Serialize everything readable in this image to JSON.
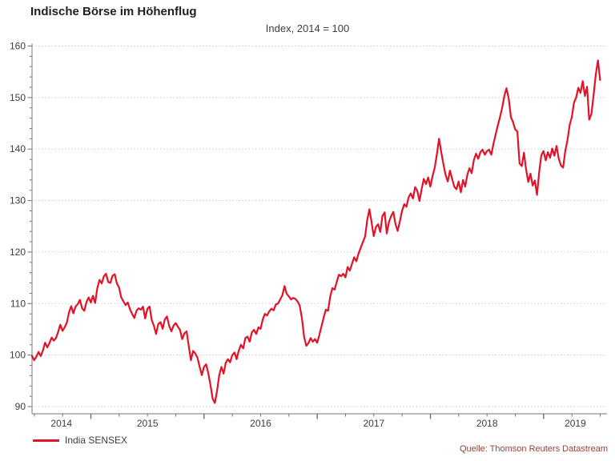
{
  "header": {
    "title": "Indische Börse im Höhenflug",
    "subtitle": "Index, 2014 = 100"
  },
  "legend": {
    "label": "India SENSEX"
  },
  "source": "Quelle: Thomson Reuters Datastream",
  "colors": {
    "line": "#e31227",
    "axis": "#8f8f8f",
    "tick": "#6e6e6e",
    "grid": "#c8c8c8",
    "text": "#3d3d3d",
    "source_text": "#9c4038"
  },
  "chart_data": {
    "type": "line",
    "title": "Indische Börse im Höhenflug",
    "subtitle": "Index, 2014 = 100",
    "grid": "horizontal-dotted",
    "legend_position": "bottom-left",
    "x_axis": {
      "min": 2014.48,
      "max": 2019.56,
      "year_labels": [
        "2014",
        "2015",
        "2016",
        "2017",
        "2018",
        "2019"
      ],
      "minor_tick_step_years": 0.25
    },
    "y_axis": {
      "min": 90,
      "max": 160,
      "ticks": [
        90,
        100,
        110,
        120,
        130,
        140,
        150,
        160
      ],
      "minor_tick_step": 2
    },
    "series": [
      {
        "name": "India SENSEX",
        "color": "#e31227",
        "t_start": 2014.48,
        "points_per_year": 52,
        "values": [
          99.8,
          99.0,
          99.7,
          100.6,
          99.8,
          100.9,
          102.4,
          101.5,
          102.3,
          103.4,
          102.8,
          103.3,
          104.5,
          105.9,
          104.7,
          105.4,
          106.3,
          108.3,
          109.5,
          108.1,
          109.4,
          109.9,
          110.7,
          109.1,
          108.6,
          110.3,
          111.2,
          110.2,
          111.5,
          110.1,
          113.0,
          114.6,
          113.9,
          115.3,
          115.8,
          114.2,
          114.0,
          115.4,
          115.7,
          113.9,
          113.1,
          111.2,
          110.4,
          109.7,
          110.2,
          108.9,
          108.0,
          107.2,
          108.6,
          109.1,
          108.8,
          109.4,
          107.1,
          109.0,
          109.4,
          106.8,
          105.7,
          104.1,
          106.0,
          106.4,
          105.1,
          106.9,
          107.5,
          105.7,
          104.6,
          105.7,
          106.2,
          105.5,
          104.9,
          103.1,
          104.2,
          104.6,
          101.8,
          99.0,
          100.8,
          100.3,
          99.5,
          97.7,
          96.1,
          97.7,
          98.2,
          96.4,
          94.1,
          91.5,
          90.7,
          93.0,
          96.1,
          97.7,
          96.4,
          98.5,
          99.2,
          98.6,
          100.0,
          100.5,
          99.2,
          100.9,
          102.0,
          101.3,
          103.3,
          103.6,
          102.6,
          104.4,
          104.9,
          104.1,
          105.4,
          105.1,
          106.9,
          108.0,
          107.7,
          108.5,
          109.0,
          108.7,
          109.8,
          110.0,
          110.8,
          111.6,
          113.4,
          111.9,
          111.4,
          110.8,
          111.1,
          110.9,
          110.4,
          109.6,
          107.2,
          103.5,
          101.8,
          102.3,
          103.3,
          102.6,
          103.1,
          102.4,
          103.9,
          105.6,
          107.3,
          108.8,
          108.6,
          111.4,
          113.0,
          112.7,
          114.2,
          115.6,
          115.3,
          115.8,
          115.1,
          117.1,
          116.4,
          117.7,
          119.0,
          118.2,
          119.7,
          120.8,
          121.9,
          123.0,
          126.2,
          128.3,
          125.8,
          123.1,
          124.9,
          125.4,
          123.9,
          127.0,
          127.7,
          123.6,
          125.9,
          127.0,
          127.8,
          125.4,
          124.1,
          126.0,
          128.0,
          129.3,
          128.8,
          130.6,
          131.4,
          130.4,
          132.6,
          131.9,
          129.9,
          132.2,
          134.2,
          133.2,
          134.5,
          132.7,
          134.7,
          136.3,
          139.0,
          142.0,
          139.4,
          137.1,
          135.0,
          133.7,
          135.8,
          134.2,
          132.7,
          132.2,
          133.7,
          131.6,
          134.0,
          132.7,
          135.0,
          136.3,
          135.3,
          137.9,
          139.1,
          138.1,
          139.4,
          139.9,
          138.9,
          139.6,
          139.9,
          138.9,
          141.0,
          142.8,
          144.6,
          146.2,
          148.0,
          150.3,
          151.8,
          149.8,
          146.2,
          145.2,
          143.8,
          143.4,
          137.2,
          136.7,
          139.3,
          136.0,
          133.6,
          135.2,
          132.9,
          133.9,
          131.1,
          135.5,
          138.8,
          139.6,
          137.8,
          139.4,
          138.3,
          140.1,
          138.7,
          140.6,
          138.1,
          136.8,
          136.4,
          139.6,
          141.7,
          144.7,
          146.2,
          149.0,
          150.0,
          151.9,
          150.9,
          153.2,
          150.3,
          152.1,
          145.7,
          146.8,
          150.5,
          154.5,
          157.2,
          153.4
        ]
      }
    ]
  }
}
